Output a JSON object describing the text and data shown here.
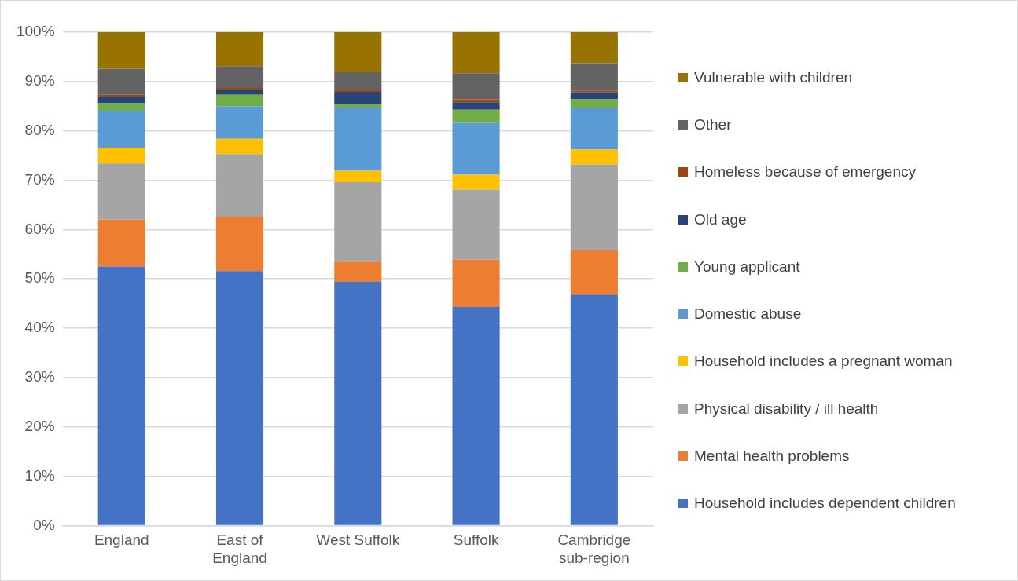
{
  "chart_data": {
    "type": "bar",
    "stacked": true,
    "categories": [
      "England",
      "East of England",
      "West Suffolk",
      "Suffolk",
      "Cambridge sub-region"
    ],
    "series": [
      {
        "name": "Household includes dependent children",
        "color": "#4472c4",
        "values": [
          52.5,
          51.6,
          49.4,
          44.3,
          46.8
        ]
      },
      {
        "name": "Mental health problems",
        "color": "#ed7d31",
        "values": [
          9.5,
          11.0,
          4.1,
          9.6,
          9.0
        ]
      },
      {
        "name": "Physical disability / ill health",
        "color": "#a5a5a5",
        "values": [
          11.4,
          12.7,
          16.1,
          14.2,
          17.4
        ]
      },
      {
        "name": "Household includes a pregnant woman",
        "color": "#ffc000",
        "values": [
          3.2,
          3.1,
          2.3,
          3.0,
          3.0
        ]
      },
      {
        "name": "Domestic abuse",
        "color": "#5b9bd5",
        "values": [
          7.5,
          6.6,
          12.8,
          10.5,
          8.5
        ]
      },
      {
        "name": "Young applicant",
        "color": "#70ad47",
        "values": [
          1.5,
          2.3,
          0.7,
          2.7,
          1.7
        ]
      },
      {
        "name": "Old age",
        "color": "#264478",
        "values": [
          1.3,
          1.0,
          2.5,
          1.5,
          1.4
        ]
      },
      {
        "name": "Homeless because of emergency",
        "color": "#9e480e",
        "values": [
          0.4,
          0.4,
          0.5,
          0.6,
          0.4
        ]
      },
      {
        "name": "Other",
        "color": "#636363",
        "values": [
          5.3,
          4.4,
          3.5,
          5.3,
          5.5
        ]
      },
      {
        "name": "Vulnerable with children",
        "color": "#997300",
        "values": [
          7.4,
          6.9,
          8.1,
          8.3,
          6.3
        ]
      }
    ],
    "ylim": [
      0,
      100
    ],
    "yticks": [
      {
        "value": 0,
        "label": "0%"
      },
      {
        "value": 10,
        "label": "10%"
      },
      {
        "value": 20,
        "label": "20%"
      },
      {
        "value": 30,
        "label": "30%"
      },
      {
        "value": 40,
        "label": "40%"
      },
      {
        "value": 50,
        "label": "50%"
      },
      {
        "value": 60,
        "label": "60%"
      },
      {
        "value": 70,
        "label": "70%"
      },
      {
        "value": 80,
        "label": "80%"
      },
      {
        "value": 90,
        "label": "90%"
      },
      {
        "value": 100,
        "label": "100%"
      }
    ],
    "grid": "y",
    "legend": "right"
  }
}
